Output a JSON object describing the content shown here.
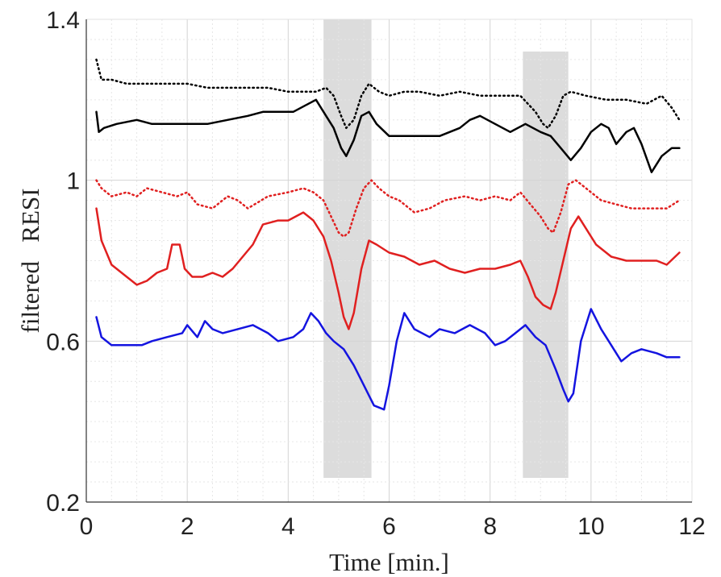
{
  "chart_data": {
    "type": "line",
    "xlabel": "Time [min.]",
    "ylabel": "filtered   RESI",
    "xlim": [
      0,
      12
    ],
    "ylim": [
      0.2,
      1.4
    ],
    "xticks": [
      "0",
      "2",
      "4",
      "6",
      "8",
      "10",
      "12"
    ],
    "yticks": [
      "0.2",
      "0.6",
      "1",
      "1.4"
    ],
    "grid": true,
    "shaded_regions": [
      {
        "x": [
          4.7,
          5.65
        ],
        "y": [
          0.26,
          1.4
        ]
      },
      {
        "x": [
          8.65,
          9.55
        ],
        "y": [
          0.26,
          1.32
        ]
      }
    ],
    "shade_color": "#dcdcdc",
    "series": [
      {
        "color": "#000000",
        "style": "dotted",
        "width": 2.5,
        "x": [
          0.2,
          0.3,
          0.5,
          0.8,
          1.2,
          1.6,
          2.0,
          2.4,
          2.8,
          3.2,
          3.6,
          4.0,
          4.3,
          4.55,
          4.75,
          4.9,
          5.05,
          5.15,
          5.3,
          5.45,
          5.6,
          5.8,
          6.0,
          6.3,
          6.6,
          7.0,
          7.4,
          7.8,
          8.2,
          8.6,
          8.9,
          9.05,
          9.15,
          9.3,
          9.45,
          9.6,
          9.9,
          10.3,
          10.7,
          11.1,
          11.4,
          11.6,
          11.75
        ],
        "y": [
          1.3,
          1.25,
          1.25,
          1.24,
          1.24,
          1.24,
          1.24,
          1.23,
          1.23,
          1.23,
          1.23,
          1.22,
          1.22,
          1.22,
          1.23,
          1.21,
          1.16,
          1.13,
          1.15,
          1.21,
          1.24,
          1.22,
          1.21,
          1.22,
          1.22,
          1.21,
          1.22,
          1.21,
          1.21,
          1.21,
          1.17,
          1.14,
          1.13,
          1.16,
          1.21,
          1.22,
          1.21,
          1.2,
          1.2,
          1.19,
          1.21,
          1.18,
          1.15
        ]
      },
      {
        "color": "#000000",
        "style": "solid",
        "width": 2.5,
        "x": [
          0.2,
          0.25,
          0.35,
          0.6,
          1.0,
          1.3,
          1.6,
          2.0,
          2.4,
          2.8,
          3.2,
          3.5,
          3.8,
          4.1,
          4.4,
          4.55,
          4.75,
          4.9,
          5.05,
          5.15,
          5.3,
          5.45,
          5.6,
          5.75,
          6.0,
          6.3,
          6.6,
          7.0,
          7.4,
          7.6,
          7.8,
          8.1,
          8.4,
          8.7,
          9.0,
          9.2,
          9.4,
          9.6,
          9.8,
          10.0,
          10.2,
          10.35,
          10.5,
          10.7,
          10.85,
          11.0,
          11.2,
          11.4,
          11.6,
          11.75
        ],
        "y": [
          1.17,
          1.12,
          1.13,
          1.14,
          1.15,
          1.14,
          1.14,
          1.14,
          1.14,
          1.15,
          1.16,
          1.17,
          1.17,
          1.17,
          1.19,
          1.2,
          1.16,
          1.13,
          1.08,
          1.06,
          1.1,
          1.16,
          1.17,
          1.14,
          1.11,
          1.11,
          1.11,
          1.11,
          1.13,
          1.15,
          1.16,
          1.14,
          1.12,
          1.14,
          1.12,
          1.11,
          1.08,
          1.05,
          1.08,
          1.12,
          1.14,
          1.13,
          1.09,
          1.12,
          1.13,
          1.09,
          1.02,
          1.06,
          1.08,
          1.08
        ]
      },
      {
        "color": "#e02020",
        "style": "dotted",
        "width": 2.5,
        "x": [
          0.2,
          0.3,
          0.5,
          0.8,
          1.0,
          1.2,
          1.5,
          1.8,
          2.0,
          2.2,
          2.5,
          2.8,
          3.0,
          3.2,
          3.6,
          4.0,
          4.3,
          4.5,
          4.7,
          4.85,
          5.0,
          5.1,
          5.2,
          5.35,
          5.5,
          5.65,
          5.8,
          6.0,
          6.2,
          6.5,
          6.8,
          7.1,
          7.5,
          7.8,
          8.1,
          8.4,
          8.6,
          8.8,
          9.0,
          9.15,
          9.25,
          9.4,
          9.55,
          9.7,
          9.9,
          10.2,
          10.5,
          10.8,
          11.2,
          11.5,
          11.75
        ],
        "y": [
          1.0,
          0.98,
          0.96,
          0.97,
          0.96,
          0.98,
          0.97,
          0.96,
          0.97,
          0.94,
          0.93,
          0.96,
          0.95,
          0.93,
          0.96,
          0.97,
          0.98,
          0.97,
          0.95,
          0.91,
          0.87,
          0.86,
          0.87,
          0.93,
          0.98,
          1.0,
          0.98,
          0.96,
          0.95,
          0.92,
          0.93,
          0.95,
          0.96,
          0.95,
          0.96,
          0.95,
          0.97,
          0.94,
          0.91,
          0.88,
          0.87,
          0.92,
          0.99,
          1.0,
          0.98,
          0.95,
          0.94,
          0.93,
          0.93,
          0.93,
          0.95
        ]
      },
      {
        "color": "#e02020",
        "style": "solid",
        "width": 2.5,
        "x": [
          0.2,
          0.3,
          0.5,
          0.8,
          1.0,
          1.2,
          1.4,
          1.6,
          1.7,
          1.85,
          1.95,
          2.1,
          2.3,
          2.5,
          2.7,
          2.9,
          3.1,
          3.3,
          3.5,
          3.8,
          4.0,
          4.3,
          4.5,
          4.7,
          4.85,
          5.0,
          5.1,
          5.2,
          5.3,
          5.45,
          5.6,
          5.75,
          6.0,
          6.3,
          6.6,
          6.9,
          7.2,
          7.5,
          7.8,
          8.1,
          8.4,
          8.6,
          8.75,
          8.9,
          9.05,
          9.2,
          9.3,
          9.45,
          9.6,
          9.75,
          9.9,
          10.1,
          10.4,
          10.7,
          11.0,
          11.3,
          11.5,
          11.75
        ],
        "y": [
          0.93,
          0.85,
          0.79,
          0.76,
          0.74,
          0.75,
          0.77,
          0.78,
          0.84,
          0.84,
          0.78,
          0.76,
          0.76,
          0.77,
          0.76,
          0.78,
          0.81,
          0.84,
          0.89,
          0.9,
          0.9,
          0.92,
          0.9,
          0.86,
          0.8,
          0.72,
          0.66,
          0.63,
          0.67,
          0.78,
          0.85,
          0.84,
          0.82,
          0.81,
          0.79,
          0.8,
          0.78,
          0.77,
          0.78,
          0.78,
          0.79,
          0.8,
          0.76,
          0.71,
          0.69,
          0.68,
          0.72,
          0.8,
          0.88,
          0.91,
          0.88,
          0.84,
          0.81,
          0.8,
          0.8,
          0.8,
          0.79,
          0.82
        ]
      },
      {
        "color": "#1414e0",
        "style": "solid",
        "width": 2.5,
        "x": [
          0.2,
          0.3,
          0.5,
          0.8,
          1.1,
          1.3,
          1.6,
          1.9,
          2.0,
          2.2,
          2.35,
          2.5,
          2.7,
          3.0,
          3.3,
          3.6,
          3.8,
          4.1,
          4.3,
          4.45,
          4.6,
          4.75,
          4.9,
          5.1,
          5.3,
          5.5,
          5.7,
          5.9,
          6.0,
          6.15,
          6.3,
          6.5,
          6.8,
          7.0,
          7.3,
          7.6,
          7.9,
          8.1,
          8.3,
          8.5,
          8.7,
          8.9,
          9.1,
          9.3,
          9.45,
          9.55,
          9.65,
          9.8,
          10.0,
          10.2,
          10.4,
          10.6,
          10.8,
          11.0,
          11.3,
          11.5,
          11.75
        ],
        "y": [
          0.66,
          0.61,
          0.59,
          0.59,
          0.59,
          0.6,
          0.61,
          0.62,
          0.64,
          0.61,
          0.65,
          0.63,
          0.62,
          0.63,
          0.64,
          0.62,
          0.6,
          0.61,
          0.63,
          0.67,
          0.65,
          0.62,
          0.6,
          0.58,
          0.54,
          0.49,
          0.44,
          0.43,
          0.49,
          0.6,
          0.67,
          0.63,
          0.61,
          0.63,
          0.62,
          0.64,
          0.62,
          0.59,
          0.6,
          0.62,
          0.64,
          0.61,
          0.59,
          0.53,
          0.48,
          0.45,
          0.47,
          0.6,
          0.68,
          0.63,
          0.59,
          0.55,
          0.57,
          0.58,
          0.57,
          0.56,
          0.56
        ]
      }
    ]
  }
}
